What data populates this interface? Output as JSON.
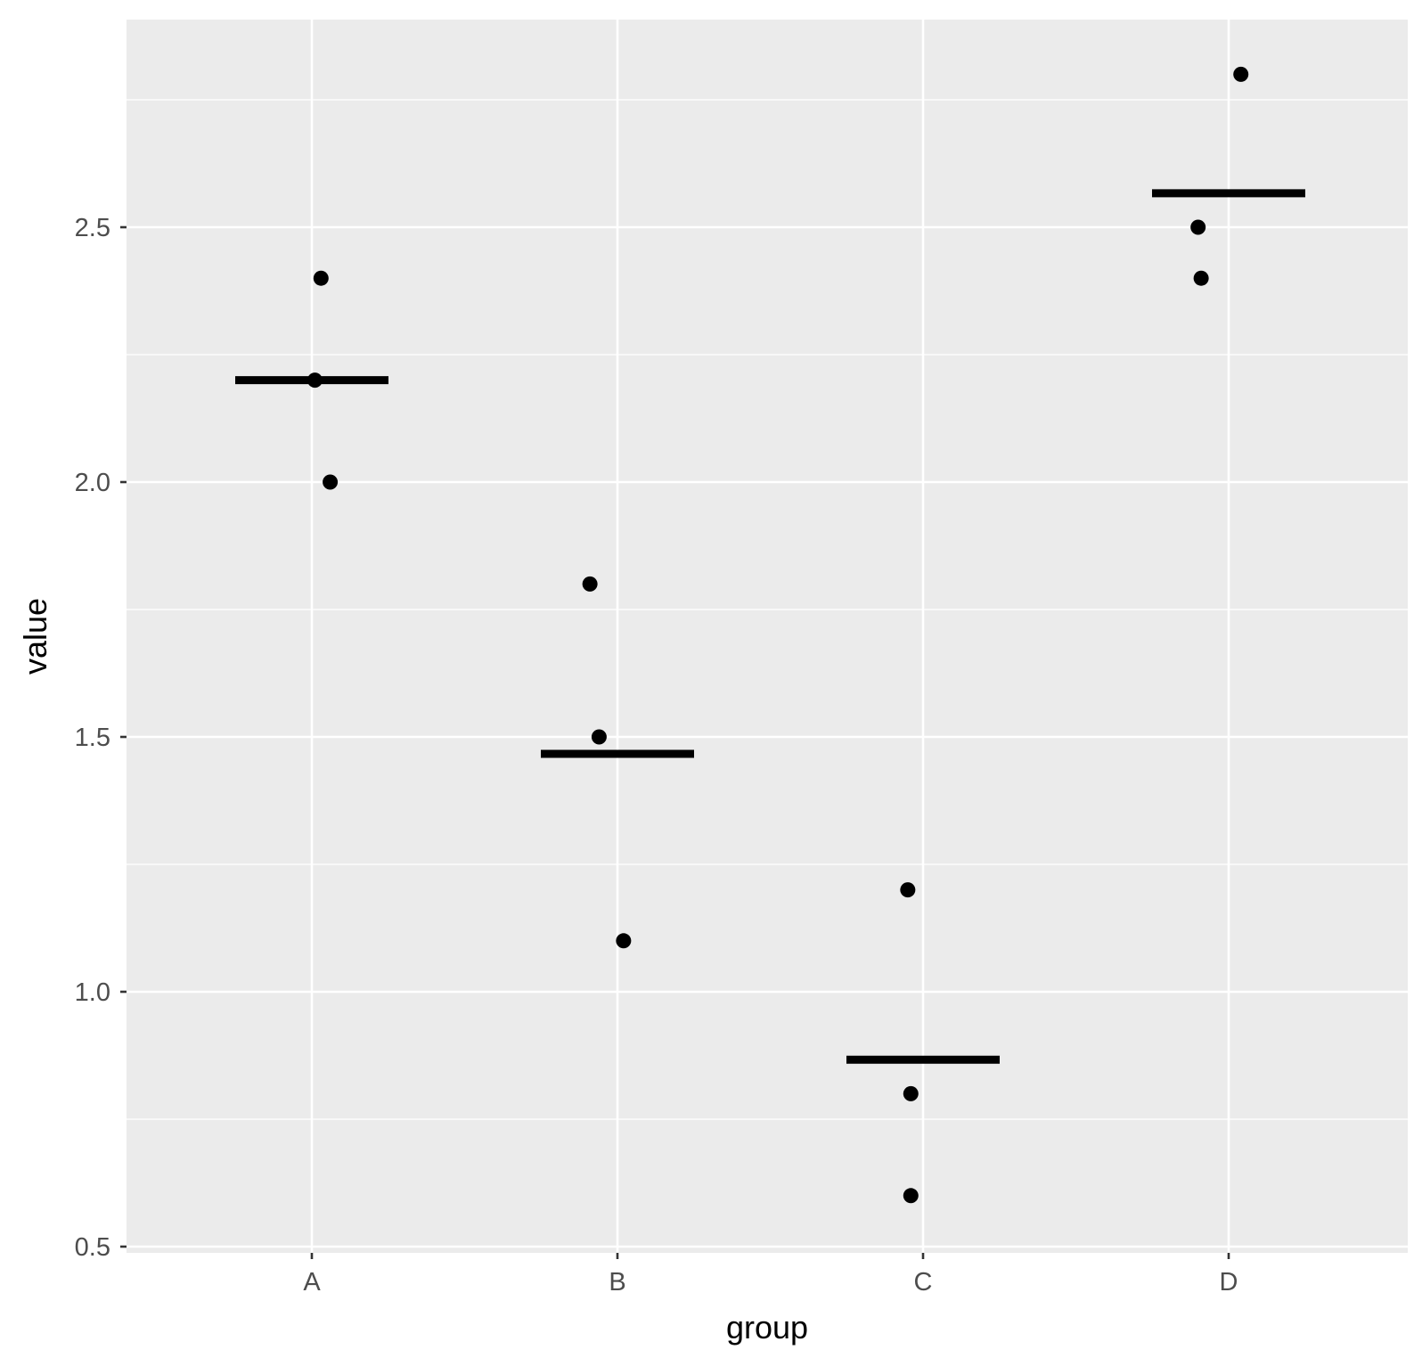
{
  "chart_data": {
    "type": "scatter",
    "title": "",
    "xlabel": "group",
    "ylabel": "value",
    "categories": [
      "A",
      "B",
      "C",
      "D"
    ],
    "ylim": [
      0.48,
      2.89
    ],
    "y_ticks": [
      0.5,
      1.0,
      1.5,
      2.0,
      2.5
    ],
    "y_tick_labels": [
      "0.5",
      "1.0",
      "1.5",
      "2.0",
      "2.5"
    ],
    "y_minor_ticks": [
      0.75,
      1.25,
      1.75,
      2.25,
      2.75
    ],
    "grid": true,
    "legend": "none",
    "points": [
      {
        "group": "A",
        "value": 2.4,
        "jitter": 0.03
      },
      {
        "group": "A",
        "value": 2.2,
        "jitter": 0.01
      },
      {
        "group": "A",
        "value": 2.0,
        "jitter": 0.06
      },
      {
        "group": "B",
        "value": 1.8,
        "jitter": -0.09
      },
      {
        "group": "B",
        "value": 1.5,
        "jitter": -0.06
      },
      {
        "group": "B",
        "value": 1.1,
        "jitter": 0.02
      },
      {
        "group": "C",
        "value": 1.2,
        "jitter": -0.05
      },
      {
        "group": "C",
        "value": 0.8,
        "jitter": -0.04
      },
      {
        "group": "C",
        "value": 0.6,
        "jitter": -0.04
      },
      {
        "group": "D",
        "value": 2.8,
        "jitter": 0.04
      },
      {
        "group": "D",
        "value": 2.5,
        "jitter": -0.1
      },
      {
        "group": "D",
        "value": 2.4,
        "jitter": -0.09
      }
    ],
    "summary_means": [
      {
        "group": "A",
        "value": 2.2
      },
      {
        "group": "B",
        "value": 1.4667
      },
      {
        "group": "C",
        "value": 0.8667
      },
      {
        "group": "D",
        "value": 2.5667
      }
    ],
    "colors": {
      "panel": "#EBEBEB",
      "grid": "#FFFFFF",
      "points": "#000000",
      "mean_bar": "#000000",
      "tick": "#333333"
    }
  }
}
